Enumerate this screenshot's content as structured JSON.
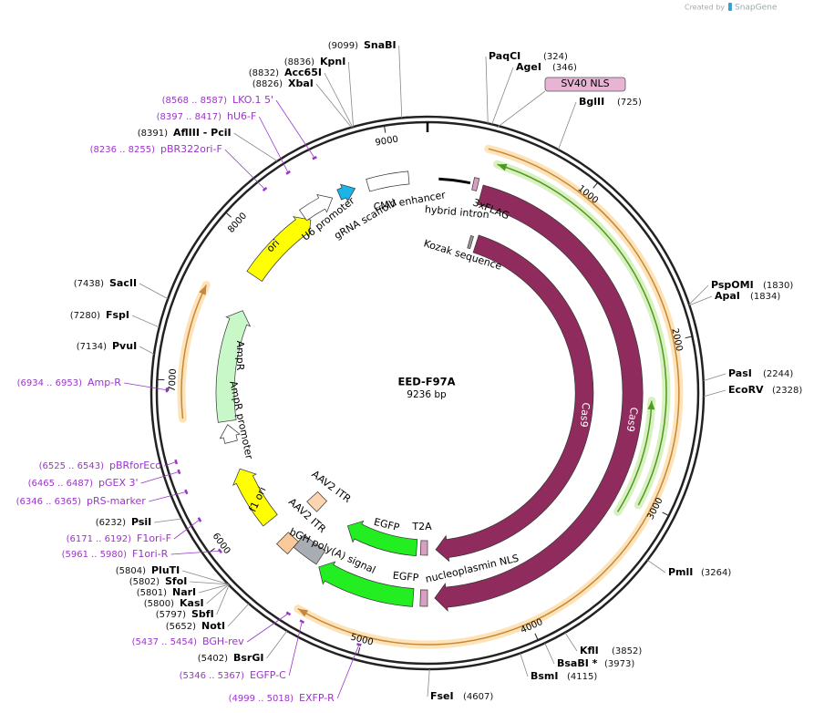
{
  "header": {
    "created_by": "Created by",
    "brand": "SnapGene"
  },
  "plasmid": {
    "name": "EED-F97A",
    "size": "9236 bp"
  },
  "ruler_ticks": [
    1000,
    2000,
    3000,
    4000,
    5000,
    6000,
    7000,
    8000,
    9000
  ],
  "sites": [
    {
      "position": "(9099)",
      "name": "SnaBI"
    },
    {
      "position": "(8836)",
      "name": "KpnI"
    },
    {
      "position": "(8832)",
      "name": "Acc65I"
    },
    {
      "position": "(8826)",
      "name": "XbaI"
    },
    {
      "position": "(8391)",
      "name": "AflIII  - PciI"
    },
    {
      "position": "(7438)",
      "name": "SacII"
    },
    {
      "position": "(7280)",
      "name": "FspI"
    },
    {
      "position": "(7134)",
      "name": "PvuI"
    },
    {
      "position": "(6232)",
      "name": "PsiI"
    },
    {
      "position": "(5804)",
      "name": "PluTI"
    },
    {
      "position": "(5802)",
      "name": "SfoI"
    },
    {
      "position": "(5801)",
      "name": "NarI"
    },
    {
      "position": "(5800)",
      "name": "KasI"
    },
    {
      "position": "(5797)",
      "name": "SbfI"
    },
    {
      "position": "(5652)",
      "name": "NotI"
    },
    {
      "position": "(5402)",
      "name": "BsrGI"
    },
    {
      "position": "(324)",
      "name": "PaqCI"
    },
    {
      "position": "(346)",
      "name": "AgeI"
    },
    {
      "position": "(725)",
      "name": "BglII"
    },
    {
      "position": "(1830)",
      "name": "PspOMI"
    },
    {
      "position": "(1834)",
      "name": "ApaI"
    },
    {
      "position": "(2244)",
      "name": "PasI"
    },
    {
      "position": "(2328)",
      "name": "EcoRV"
    },
    {
      "position": "(3264)",
      "name": "PmlI"
    },
    {
      "position": "(3852)",
      "name": "KflI"
    },
    {
      "position": "(3973)",
      "name": "BsaBI *"
    },
    {
      "position": "(4115)",
      "name": "BsmI"
    },
    {
      "position": "(4607)",
      "name": "FseI"
    }
  ],
  "primers": [
    {
      "range": "(8568 .. 8587)",
      "name": "LKO.1 5'"
    },
    {
      "range": "(8397 .. 8417)",
      "name": "hU6-F"
    },
    {
      "range": "(8236 .. 8255)",
      "name": "pBR322ori-F"
    },
    {
      "range": "(6934 .. 6953)",
      "name": "Amp-R"
    },
    {
      "range": "(6525 .. 6543)",
      "name": "pBRforEco"
    },
    {
      "range": "(6465 .. 6487)",
      "name": "pGEX 3'"
    },
    {
      "range": "(6346 .. 6365)",
      "name": "pRS-marker"
    },
    {
      "range": "(6171 .. 6192)",
      "name": "F1ori-F"
    },
    {
      "range": "(5961 .. 5980)",
      "name": "F1ori-R"
    },
    {
      "range": "(5437 .. 5454)",
      "name": "BGH-rev"
    },
    {
      "range": "(5346 .. 5367)",
      "name": "EGFP-C"
    },
    {
      "range": "(4999 .. 5018)",
      "name": "EXFP-R"
    }
  ],
  "features": [
    {
      "label": "U6 promoter"
    },
    {
      "label": "gRNA scaffold"
    },
    {
      "label": "CMV enhancer"
    },
    {
      "label": "hybrid intron"
    },
    {
      "label": "3xFLAG"
    },
    {
      "label": "Kozak sequence"
    },
    {
      "label": "Cas9"
    },
    {
      "label": "Cas9"
    },
    {
      "label": "T2A"
    },
    {
      "label": "EGFP"
    },
    {
      "label": "EGFP"
    },
    {
      "label": "nucleoplasmin NLS"
    },
    {
      "label": "bGH poly(A) signal"
    },
    {
      "label": "AAV2 ITR"
    },
    {
      "label": "AAV2 ITR"
    },
    {
      "label": "f1 ori"
    },
    {
      "label": "AmpR"
    },
    {
      "label": "AmpR promoter"
    },
    {
      "label": "ori"
    },
    {
      "label": "SV40 NLS"
    }
  ]
}
